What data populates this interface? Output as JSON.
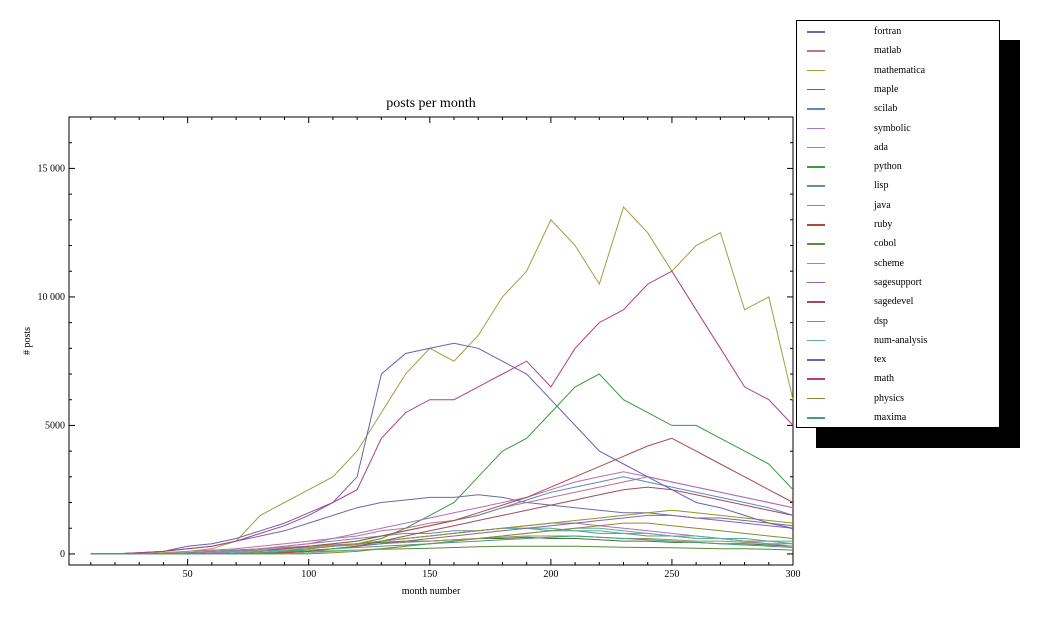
{
  "chart_data": {
    "type": "line",
    "title": "posts per month",
    "xlabel": "month number",
    "ylabel": "# posts",
    "xlim": [
      1,
      300
    ],
    "ylim": [
      -430,
      17000
    ],
    "xticks": [
      50,
      100,
      150,
      200,
      250,
      300
    ],
    "xtick_labels": [
      "50",
      "100",
      "150",
      "200",
      "250",
      "300"
    ],
    "yticks": [
      0,
      5000,
      10000,
      15000
    ],
    "ytick_labels": [
      "0",
      "5000",
      "10 000",
      "15 000"
    ],
    "legend_position": "top-right, outside",
    "x": [
      10,
      20,
      30,
      40,
      50,
      60,
      70,
      80,
      90,
      100,
      110,
      120,
      130,
      140,
      150,
      160,
      170,
      180,
      190,
      200,
      210,
      220,
      230,
      240,
      250,
      260,
      270,
      280,
      290,
      300
    ],
    "series": [
      {
        "name": "fortran",
        "color": "#6b6ba8",
        "values": [
          0,
          0,
          50,
          100,
          200,
          300,
          500,
          700,
          900,
          1200,
          1500,
          1800,
          2000,
          2100,
          2200,
          2200,
          2300,
          2200,
          2000,
          1900,
          1800,
          1700,
          1600,
          1600,
          1500,
          1400,
          1400,
          1300,
          1200,
          1100
        ]
      },
      {
        "name": "matlab",
        "color": "#c07090",
        "values": [
          0,
          0,
          0,
          50,
          100,
          150,
          200,
          300,
          400,
          500,
          600,
          700,
          900,
          1000,
          1200,
          1300,
          1500,
          1800,
          2000,
          2200,
          2400,
          2600,
          2800,
          3000,
          2800,
          2600,
          2400,
          2200,
          2000,
          1800
        ]
      },
      {
        "name": "mathematica",
        "color": "#a0a040",
        "values": [
          0,
          0,
          0,
          50,
          100,
          200,
          500,
          1500,
          2000,
          2500,
          3000,
          4000,
          5500,
          7000,
          8000,
          7500,
          8500,
          10000,
          11000,
          13000,
          12000,
          10500,
          13500,
          12500,
          11000,
          12000,
          12500,
          9500,
          10000,
          6000
        ]
      },
      {
        "name": "maple",
        "color": "#3a7a3a",
        "values": [
          0,
          0,
          0,
          0,
          50,
          100,
          150,
          200,
          250,
          300,
          350,
          400,
          450,
          500,
          500,
          550,
          600,
          600,
          650,
          600,
          600,
          550,
          500,
          500,
          450,
          450,
          400,
          400,
          350,
          300
        ]
      },
      {
        "name": "scilab",
        "color": "#5a8ab8",
        "values": [
          0,
          0,
          0,
          0,
          0,
          50,
          100,
          150,
          200,
          300,
          400,
          500,
          700,
          900,
          1100,
          1300,
          1500,
          1800,
          2100,
          2400,
          2600,
          2800,
          3000,
          2800,
          2600,
          2400,
          2200,
          2000,
          1800,
          1500
        ]
      },
      {
        "name": "symbolic",
        "color": "#b070c0",
        "values": [
          0,
          0,
          0,
          0,
          50,
          100,
          150,
          200,
          250,
          300,
          350,
          400,
          500,
          600,
          700,
          800,
          900,
          1000,
          1100,
          1200,
          1200,
          1100,
          1000,
          900,
          800,
          700,
          600,
          500,
          400,
          300
        ]
      },
      {
        "name": "ada",
        "color": "#a08a60",
        "values": [
          0,
          0,
          0,
          0,
          0,
          50,
          100,
          150,
          200,
          250,
          300,
          350,
          400,
          450,
          500,
          550,
          600,
          650,
          700,
          700,
          700,
          650,
          600,
          600,
          550,
          500,
          500,
          450,
          400,
          400
        ]
      },
      {
        "name": "python",
        "color": "#3a9a3a",
        "values": [
          0,
          0,
          0,
          0,
          0,
          0,
          50,
          100,
          150,
          200,
          300,
          400,
          600,
          1000,
          1500,
          2000,
          3000,
          4000,
          4500,
          5500,
          6500,
          7000,
          6000,
          5500,
          5000,
          5000,
          4500,
          4000,
          3500,
          2500
        ]
      },
      {
        "name": "lisp",
        "color": "#6a8aa0",
        "values": [
          0,
          0,
          0,
          0,
          50,
          100,
          150,
          200,
          300,
          400,
          500,
          600,
          700,
          800,
          800,
          900,
          900,
          1000,
          1000,
          900,
          900,
          800,
          800,
          700,
          700,
          600,
          600,
          500,
          500,
          400
        ]
      },
      {
        "name": "java",
        "color": "#b070c0",
        "values": [
          0,
          0,
          0,
          0,
          0,
          50,
          100,
          200,
          300,
          400,
          600,
          800,
          1000,
          1200,
          1400,
          1600,
          1800,
          2000,
          2200,
          2500,
          2800,
          3000,
          3200,
          3000,
          2800,
          2600,
          2400,
          2200,
          2000,
          1800
        ]
      },
      {
        "name": "ruby",
        "color": "#b04a40",
        "values": [
          0,
          0,
          0,
          0,
          0,
          0,
          50,
          100,
          200,
          300,
          400,
          500,
          700,
          900,
          1100,
          1300,
          1600,
          1900,
          2200,
          2600,
          3000,
          3400,
          3800,
          4200,
          4500,
          4000,
          3500,
          3000,
          2500,
          2000
        ]
      },
      {
        "name": "cobol",
        "color": "#5a8a3a",
        "values": [
          0,
          0,
          0,
          0,
          0,
          0,
          0,
          50,
          80,
          100,
          120,
          150,
          180,
          200,
          220,
          250,
          280,
          300,
          300,
          300,
          300,
          280,
          260,
          250,
          240,
          220,
          200,
          200,
          180,
          150
        ]
      },
      {
        "name": "scheme",
        "color": "#50b0a0",
        "values": [
          0,
          0,
          0,
          0,
          0,
          0,
          50,
          100,
          150,
          200,
          300,
          400,
          500,
          600,
          700,
          800,
          900,
          1000,
          1000,
          1000,
          900,
          900,
          800,
          800,
          700,
          700,
          600,
          600,
          500,
          500
        ]
      },
      {
        "name": "sagesupport",
        "color": "#8a60b0",
        "values": [
          0,
          0,
          0,
          0,
          0,
          0,
          0,
          0,
          50,
          100,
          200,
          300,
          400,
          500,
          600,
          700,
          800,
          900,
          1000,
          1100,
          1200,
          1300,
          1400,
          1500,
          1500,
          1400,
          1300,
          1200,
          1100,
          1000
        ]
      },
      {
        "name": "sagedevel",
        "color": "#a04a60",
        "values": [
          0,
          0,
          0,
          0,
          0,
          0,
          0,
          0,
          50,
          100,
          200,
          300,
          500,
          700,
          900,
          1100,
          1300,
          1500,
          1700,
          1900,
          2100,
          2300,
          2500,
          2600,
          2500,
          2300,
          2100,
          1900,
          1700,
          1500
        ]
      },
      {
        "name": "dsp",
        "color": "#8a9a20",
        "values": [
          0,
          0,
          0,
          0,
          0,
          0,
          0,
          50,
          100,
          200,
          300,
          400,
          500,
          600,
          700,
          800,
          900,
          1000,
          1100,
          1200,
          1300,
          1400,
          1500,
          1600,
          1700,
          1600,
          1500,
          1400,
          1300,
          1200
        ]
      },
      {
        "name": "num-analysis",
        "color": "#60b090",
        "values": [
          0,
          0,
          0,
          0,
          0,
          0,
          0,
          0,
          0,
          50,
          100,
          150,
          200,
          300,
          400,
          500,
          600,
          700,
          800,
          900,
          1000,
          1000,
          900,
          800,
          700,
          600,
          600,
          500,
          500,
          400
        ]
      },
      {
        "name": "tex",
        "color": "#6a60b0",
        "values": [
          0,
          0,
          50,
          100,
          300,
          400,
          600,
          900,
          1200,
          1600,
          2000,
          3000,
          7000,
          7800,
          8000,
          8200,
          8000,
          7500,
          7000,
          6000,
          5000,
          4000,
          3500,
          3000,
          2500,
          2000,
          1800,
          1500,
          1200,
          1000
        ]
      },
      {
        "name": "math",
        "color": "#b04080",
        "values": [
          0,
          0,
          50,
          100,
          200,
          300,
          500,
          800,
          1100,
          1500,
          2000,
          2500,
          4500,
          5500,
          6000,
          6000,
          6500,
          7000,
          7500,
          6500,
          8000,
          9000,
          9500,
          10500,
          11000,
          9500,
          8000,
          6500,
          6000,
          5000
        ]
      },
      {
        "name": "physics",
        "color": "#8a8a30",
        "values": [
          0,
          0,
          0,
          0,
          0,
          0,
          0,
          0,
          0,
          0,
          50,
          100,
          200,
          300,
          400,
          500,
          600,
          700,
          800,
          900,
          1000,
          1100,
          1200,
          1200,
          1100,
          1000,
          900,
          800,
          700,
          600
        ]
      },
      {
        "name": "maxima",
        "color": "#40a080",
        "values": [
          0,
          0,
          0,
          0,
          0,
          0,
          0,
          50,
          100,
          150,
          200,
          250,
          300,
          350,
          400,
          450,
          500,
          550,
          600,
          650,
          700,
          650,
          600,
          550,
          500,
          450,
          400,
          350,
          300,
          250
        ]
      }
    ]
  }
}
